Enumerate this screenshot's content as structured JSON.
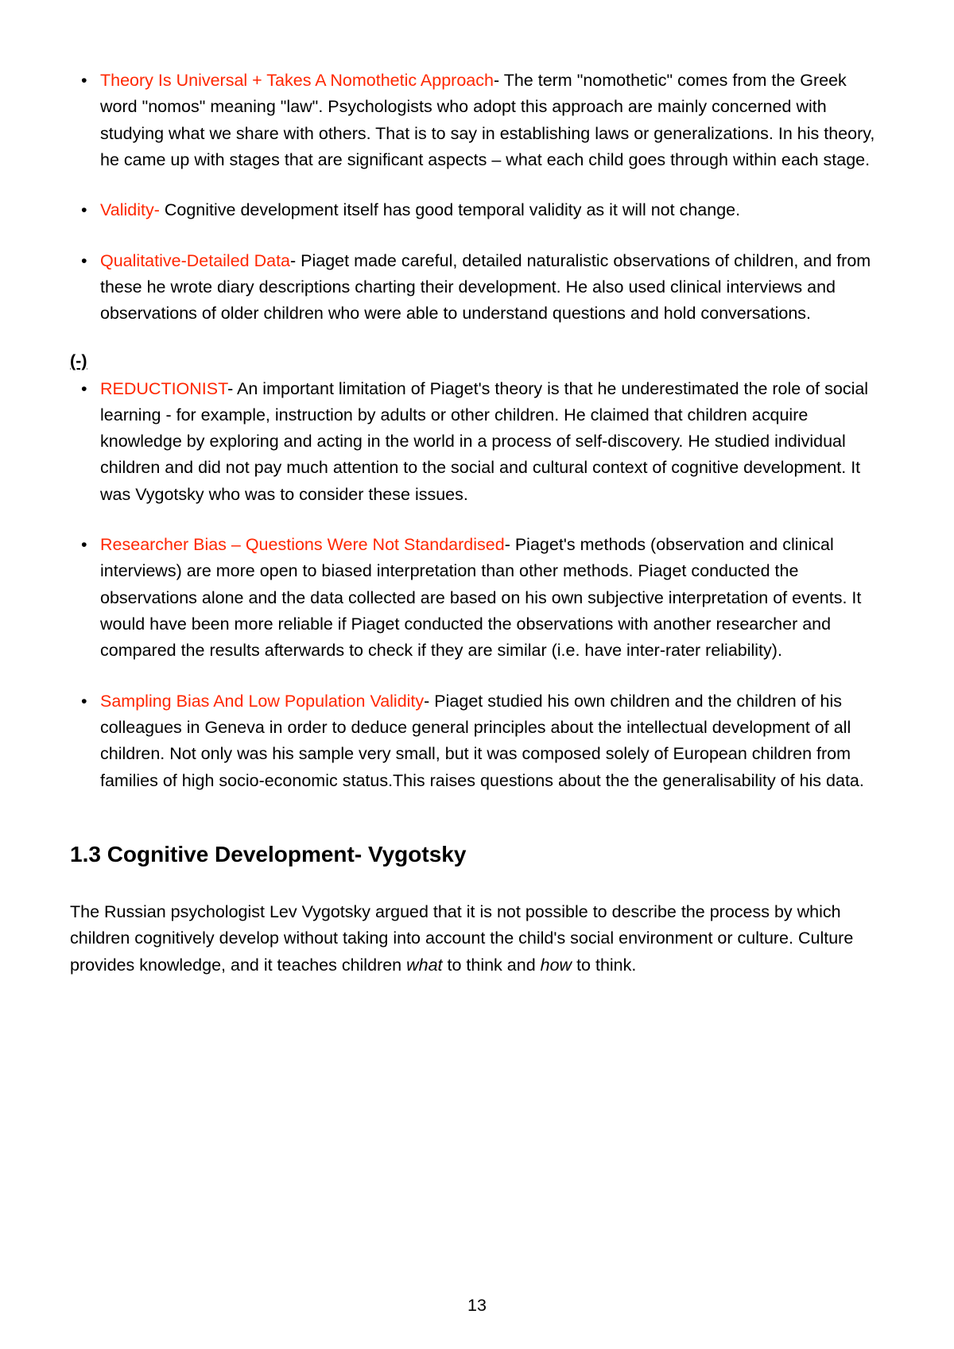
{
  "positives": {
    "items": [
      {
        "title": "Theory Is Universal + Takes A Nomothetic Approach",
        "body": "- The term \"nomothetic\" comes from the Greek word \"nomos\" meaning \"law\". Psychologists who adopt this approach are mainly concerned with studying what we share with others. That is to say in establishing laws or generalizations. In his theory, he came up with stages that are significant aspects – what each child goes through within each stage."
      },
      {
        "title": "Validity-",
        "body": " Cognitive development itself has good temporal validity as it will not change."
      },
      {
        "title": "Qualitative-Detailed Data",
        "body": "- Piaget made careful, detailed naturalistic observations of children, and from these he wrote diary descriptions charting their development. He also used clinical interviews and observations of older children who were able to understand questions and hold conversations."
      }
    ]
  },
  "negatives": {
    "marker": "(-)",
    "items": [
      {
        "title": "REDUCTIONIST",
        "body": "- An important limitation of Piaget's theory is that he underestimated the role of social learning - for example, instruction by adults or other children. He claimed that children acquire knowledge by exploring and acting in the world in a process of self-discovery. He studied individual children and did not pay much attention to the social and cultural context of cognitive development. It was Vygotsky who was to consider these issues."
      },
      {
        "title": "Researcher Bias – Questions Were Not Standardised",
        "body": "- Piaget's methods (observation and clinical interviews) are more open to biased interpretation than other methods. Piaget conducted the observations alone and the data collected are based on his own subjective interpretation of events. It would have been more reliable if Piaget conducted the observations with another researcher and compared the results afterwards to check if they are similar (i.e. have inter-rater reliability)."
      },
      {
        "title": "Sampling Bias And Low Population Validity",
        "body": "-  Piaget studied his own  children and the children of his colleagues in Geneva in order to deduce general principles about the intellectual development of all children. Not only was his sample very small, but it was composed solely of European children from families of high socio-economic status.This raises questions about the the generalisability of his data."
      }
    ]
  },
  "section": {
    "heading": "1.3 Cognitive Development- Vygotsky",
    "intro_pre": "The Russian psychologist Lev Vygotsky argued that it is not possible to describe the process by which children cognitively develop without taking into account the child's social environment or culture. Culture provides knowledge, and it teaches children ",
    "intro_em1": "what",
    "intro_mid": " to think and ",
    "intro_em2": "how",
    "intro_post": " to think."
  },
  "page_number": "13",
  "colors": {
    "highlight": "#ff2600",
    "text": "#000000",
    "background": "#ffffff"
  }
}
